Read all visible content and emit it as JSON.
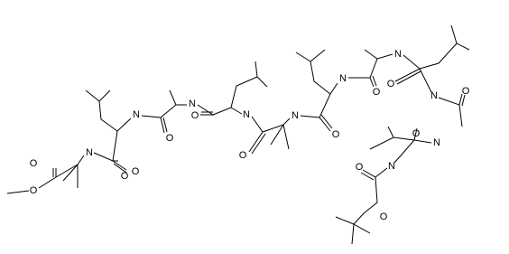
{
  "atoms": [
    {
      "label": "O"
    },
    {
      "label": "O"
    },
    {
      "label": "N"
    },
    {
      "label": "O"
    },
    {
      "label": "N"
    },
    {
      "label": "O"
    },
    {
      "label": "N"
    },
    {
      "label": "O"
    },
    {
      "label": "N"
    },
    {
      "label": "O"
    },
    {
      "label": "N"
    },
    {
      "label": "O"
    },
    {
      "label": "N"
    },
    {
      "label": "O"
    },
    {
      "label": "N"
    },
    {
      "label": "O"
    },
    {
      "label": "N"
    },
    {
      "label": "O"
    },
    {
      "label": "O"
    },
    {
      "label": "N"
    },
    {
      "label": "O"
    },
    {
      "label": "N"
    },
    {
      "label": "O"
    },
    {
      "label": "O"
    }
  ]
}
